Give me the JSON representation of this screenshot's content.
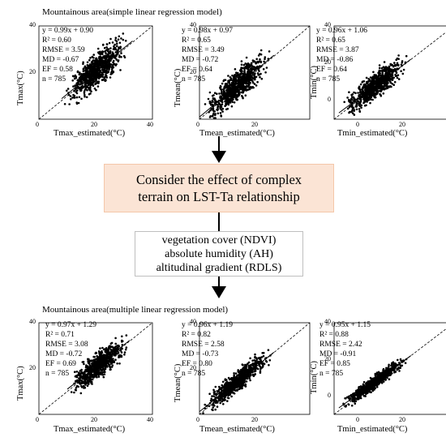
{
  "top_section": {
    "title": "Mountainous area(simple linear regression model)",
    "panels": [
      {
        "ylabel": "Tmax(°C)",
        "xlabel": "Tmax_estimated(°C)",
        "eq": "y = 0.99x + 0.90",
        "r2": "R² = 0.60",
        "rmse": "RMSE = 3.59",
        "md": "MD = -0.67",
        "ef": "EF = 0.58",
        "n": "n = 785"
      },
      {
        "ylabel": "Tmean(°C)",
        "xlabel": "Tmean_estimated(°C)",
        "eq": "y = 0.98x + 0.97",
        "r2": "R² = 0.65",
        "rmse": "RMSE = 3.49",
        "md": "MD = -0.72",
        "ef": "EF = 0.64",
        "n": "n = 785"
      },
      {
        "ylabel": "Tmin(°C)",
        "xlabel": "Tmin_estimated(°C)",
        "eq": "y = 0.96x + 1.06",
        "r2": "R² = 0.65",
        "rmse": "RMSE = 3.87",
        "md": "MD = -0.86",
        "ef": "EF = 0.64",
        "n": "n = 785"
      }
    ]
  },
  "consider_box": {
    "line1": "Consider the effect of complex",
    "line2": "terrain on LST-Ta relationship"
  },
  "factors_box": {
    "line1": "vegetation cover (NDVI)",
    "line2": "absolute humidity (AH)",
    "line3": "altitudinal gradient (RDLS)"
  },
  "bottom_section": {
    "title": "Mountainous area(multiple linear regression model)",
    "panels": [
      {
        "ylabel": "Tmax(°C)",
        "xlabel": "Tmax_estimated(°C)",
        "eq": "y = 0.97x + 1.29",
        "r2": "R² = 0.71",
        "rmse": "RMSE = 3.08",
        "md": "MD = -0.72",
        "ef": "EF = 0.69",
        "n": "n = 785"
      },
      {
        "ylabel": "Tmean(°C)",
        "xlabel": "Tmean_estimated(°C)",
        "eq": "y = 0.96x + 1.19",
        "r2": "R² = 0.82",
        "rmse": "RMSE = 2.58",
        "md": "MD = -0.73",
        "ef": "EF = 0.80",
        "n": "n = 785"
      },
      {
        "ylabel": "Tmin(°C)",
        "xlabel": "Tmin_estimated(°C)",
        "eq": "y = 0.95x + 1.15",
        "r2": "R² = 0.88",
        "rmse": "RMSE = 2.42",
        "md": "MD = -0.91",
        "ef": "EF = 0.85",
        "n": "n = 785"
      }
    ]
  },
  "ticks": {
    "t0": "0",
    "t20": "20",
    "t40": "40"
  },
  "chart_data": [
    {
      "type": "scatter",
      "xlabel": "Tmax_estimated(°C)",
      "ylabel": "Tmax(°C)",
      "xlim": [
        0,
        40
      ],
      "ylim": [
        0,
        40
      ],
      "slope": 0.99,
      "intercept": 0.9,
      "n": 785,
      "x_range": [
        8,
        33
      ],
      "spread": 5.5
    },
    {
      "type": "scatter",
      "xlabel": "Tmean_estimated(°C)",
      "ylabel": "Tmean(°C)",
      "xlim": [
        0,
        40
      ],
      "ylim": [
        0,
        40
      ],
      "slope": 0.98,
      "intercept": 0.97,
      "n": 785,
      "x_range": [
        0,
        27
      ],
      "spread": 5.0
    },
    {
      "type": "scatter",
      "xlabel": "Tmin_estimated(°C)",
      "ylabel": "Tmin(°C)",
      "xlim": [
        -10,
        40
      ],
      "ylim": [
        -10,
        40
      ],
      "slope": 0.96,
      "intercept": 1.06,
      "n": 785,
      "x_range": [
        -8,
        22
      ],
      "spread": 5.2
    },
    {
      "type": "scatter",
      "xlabel": "Tmax_estimated(°C)",
      "ylabel": "Tmax(°C)",
      "xlim": [
        0,
        40
      ],
      "ylim": [
        0,
        40
      ],
      "slope": 0.97,
      "intercept": 1.29,
      "n": 785,
      "x_range": [
        10,
        32
      ],
      "spread": 4.3
    },
    {
      "type": "scatter",
      "xlabel": "Tmean_estimated(°C)",
      "ylabel": "Tmean(°C)",
      "xlim": [
        0,
        40
      ],
      "ylim": [
        0,
        40
      ],
      "slope": 0.96,
      "intercept": 1.19,
      "n": 785,
      "x_range": [
        0,
        27
      ],
      "spread": 3.3
    },
    {
      "type": "scatter",
      "xlabel": "Tmin_estimated(°C)",
      "ylabel": "Tmin(°C)",
      "xlim": [
        -10,
        40
      ],
      "ylim": [
        -10,
        40
      ],
      "slope": 0.95,
      "intercept": 1.15,
      "n": 785,
      "x_range": [
        -8,
        22
      ],
      "spread": 2.7
    }
  ]
}
